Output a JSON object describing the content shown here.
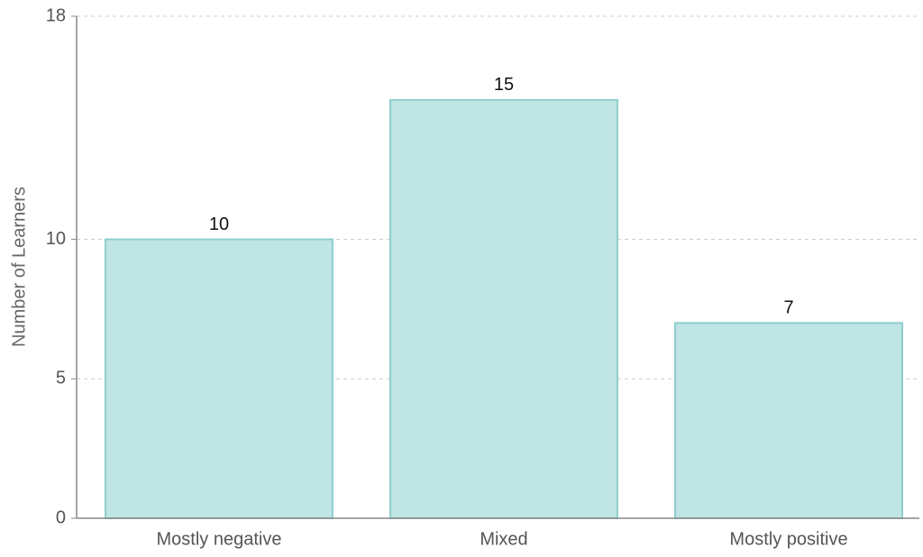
{
  "chart_data": {
    "type": "bar",
    "y_label": "Number of Learners",
    "categories": [
      "Mostly negative",
      "Mixed",
      "Mostly positive"
    ],
    "values": [
      10,
      15,
      7
    ],
    "color": "#bfe5e4",
    "edge_color": "#8fcfcc",
    "ylim": [
      0,
      18
    ],
    "yticks": [
      0,
      5,
      10,
      18
    ],
    "grid": true
  }
}
